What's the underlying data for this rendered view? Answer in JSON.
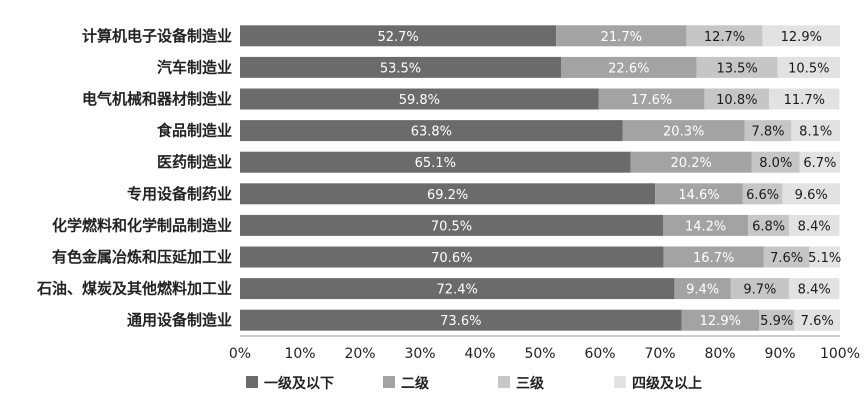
{
  "chart_data": {
    "type": "bar",
    "orientation": "horizontal",
    "stacked": true,
    "percent": true,
    "categories": [
      "计算机电子设备制造业",
      "汽车制造业",
      "电气机械和器材制造业",
      "食品制造业",
      "医药制造业",
      "专用设备制药业",
      "化学燃料和化学制品制造业",
      "有色金属冶炼和压延加工业",
      "石油、煤炭及其他燃料加工业",
      "通用设备制造业"
    ],
    "series": [
      {
        "name": "一级及以下",
        "color": "#6b6b6b",
        "label_color": "#ffffff",
        "values": [
          52.7,
          53.5,
          59.8,
          63.8,
          65.1,
          69.2,
          70.5,
          70.6,
          72.4,
          73.6
        ]
      },
      {
        "name": "二级",
        "color": "#a3a3a3",
        "label_color": "#ffffff",
        "values": [
          21.7,
          22.6,
          17.6,
          20.3,
          20.2,
          14.6,
          14.2,
          16.7,
          9.4,
          12.9
        ]
      },
      {
        "name": "三级",
        "color": "#c6c6c6",
        "label_color": "#1a1a1a",
        "values": [
          12.7,
          13.5,
          10.8,
          7.8,
          8.0,
          6.6,
          6.8,
          7.6,
          9.7,
          5.9
        ]
      },
      {
        "name": "四级及以上",
        "color": "#e2e2e2",
        "label_color": "#1a1a1a",
        "values": [
          12.9,
          10.5,
          11.7,
          8.1,
          6.7,
          9.6,
          8.4,
          5.1,
          8.4,
          7.6
        ]
      }
    ],
    "x_ticks": [
      "0%",
      "10%",
      "20%",
      "30%",
      "40%",
      "50%",
      "60%",
      "70%",
      "80%",
      "90%",
      "100%"
    ],
    "xlim": [
      0,
      100
    ],
    "grid": false,
    "legend_position": "bottom"
  }
}
